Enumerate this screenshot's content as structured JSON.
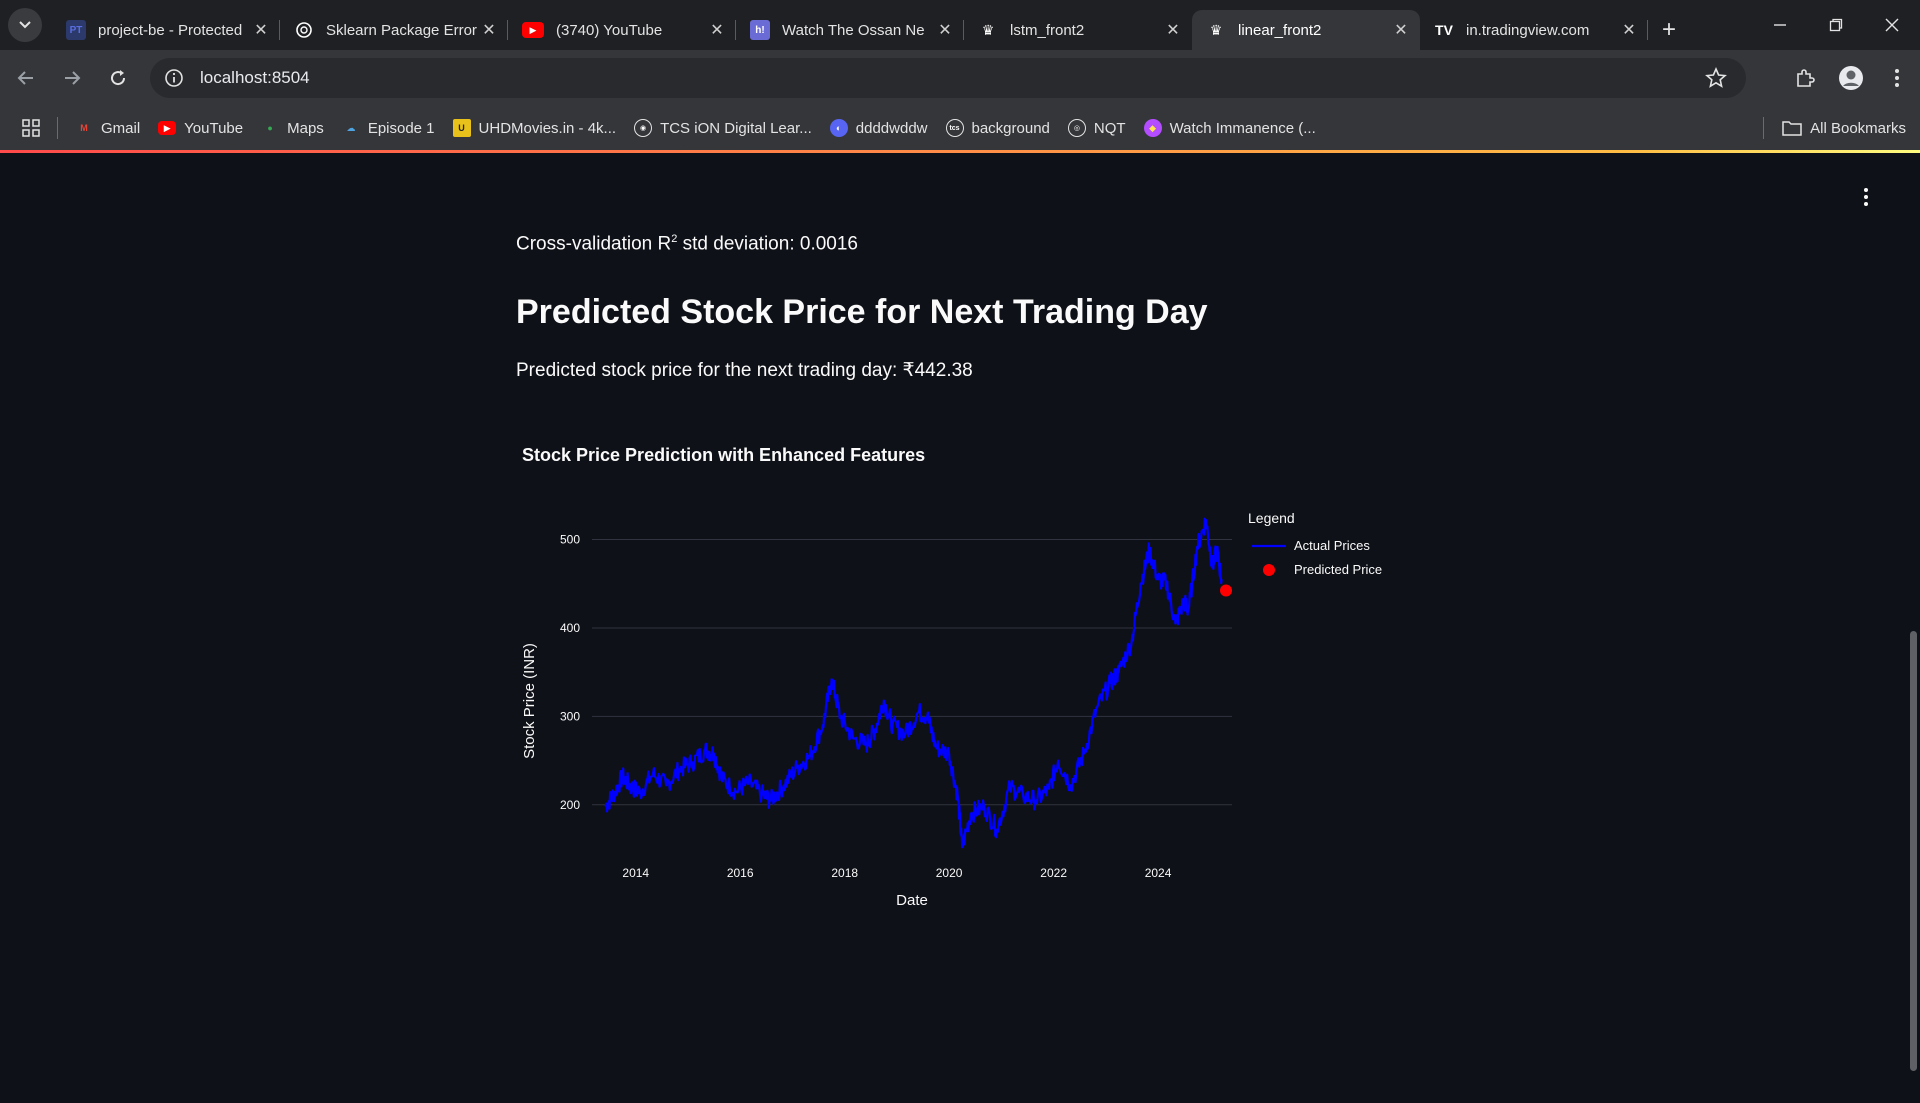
{
  "browser": {
    "tabs": [
      {
        "title": "project-be - Protected",
        "favicon": "PT",
        "icon": "pt-favicon-icon",
        "color": "#5b6ee1"
      },
      {
        "title": "Sklearn Package Error",
        "favicon": "",
        "icon": "openai-icon",
        "color": "#ffffff"
      },
      {
        "title": "(3740) YouTube",
        "favicon": "▶",
        "icon": "youtube-icon",
        "color": "#ff0000"
      },
      {
        "title": "Watch The Ossan Ne",
        "favicon": "h!",
        "icon": "hianime-icon",
        "color": "#6b6bd6"
      },
      {
        "title": "lstm_front2",
        "favicon": "♛",
        "icon": "streamlit-icon",
        "color": "#ffffff"
      },
      {
        "title": "linear_front2",
        "favicon": "♛",
        "icon": "streamlit-icon",
        "color": "#ffffff",
        "active": true
      },
      {
        "title": "in.tradingview.com",
        "favicon": "TV",
        "icon": "tradingview-icon",
        "color": "#ffffff"
      }
    ],
    "url": "localhost:8504",
    "bookmarks": [
      {
        "label": "Gmail",
        "icon": "gmail-icon",
        "glyph": "M",
        "color": "#ea4335"
      },
      {
        "label": "YouTube",
        "icon": "youtube-icon",
        "glyph": "▶",
        "color": "#ff0000"
      },
      {
        "label": "Maps",
        "icon": "maps-pin-icon",
        "glyph": "●",
        "color": "#34a853"
      },
      {
        "label": "Episode 1",
        "icon": "cloud-icon",
        "glyph": "☁",
        "color": "#4fa3e0"
      },
      {
        "label": "UHDMovies.in - 4k...",
        "icon": "uhd-icon",
        "glyph": "U",
        "color": "#e8c21b"
      },
      {
        "label": "TCS iON Digital Lear...",
        "icon": "tcs-ion-icon",
        "glyph": "◉",
        "color": "#ffffff"
      },
      {
        "label": "ddddwddw",
        "icon": "discord-icon",
        "glyph": "◐",
        "color": "#5865f2"
      },
      {
        "label": "background",
        "icon": "tcs-icon",
        "glyph": "tcs",
        "color": "#ffffff"
      },
      {
        "label": "NQT",
        "icon": "globe-icon",
        "glyph": "◎",
        "color": "#ffffff"
      },
      {
        "label": "Watch Immanence (...",
        "icon": "immanence-icon",
        "glyph": "◆",
        "color": "#b44cff"
      }
    ],
    "all_bookmarks": "All Bookmarks"
  },
  "app": {
    "cv_prefix": "Cross-validation R",
    "cv_sup": "2",
    "cv_suffix": " std deviation: 0.0016",
    "heading": "Predicted Stock Price for Next Trading Day",
    "prediction_text": "Predicted stock price for the next trading day: ₹442.38"
  },
  "chart_data": {
    "type": "line",
    "title": "Stock Price Prediction with Enhanced Features",
    "xlabel": "Date",
    "ylabel": "Stock Price (INR)",
    "x_ticks": [
      "2014",
      "2016",
      "2018",
      "2020",
      "2022",
      "2024"
    ],
    "y_ticks": [
      200,
      300,
      400,
      500
    ],
    "xlim": [
      "2013-03-01",
      "2025-06-01"
    ],
    "ylim": [
      150,
      530
    ],
    "grid": "horizontal",
    "legend_title": "Legend",
    "legend_position": "right",
    "series": [
      {
        "name": "Actual Prices",
        "color": "#0000ff",
        "points": [
          [
            "2013-06-01",
            198
          ],
          [
            "2013-08-01",
            212
          ],
          [
            "2013-10-01",
            232
          ],
          [
            "2013-12-01",
            220
          ],
          [
            "2014-02-01",
            214
          ],
          [
            "2014-05-01",
            235
          ],
          [
            "2014-08-01",
            222
          ],
          [
            "2014-11-01",
            240
          ],
          [
            "2015-02-01",
            248
          ],
          [
            "2015-05-01",
            262
          ],
          [
            "2015-07-01",
            258
          ],
          [
            "2015-09-01",
            228
          ],
          [
            "2015-12-01",
            215
          ],
          [
            "2016-03-01",
            225
          ],
          [
            "2016-06-01",
            212
          ],
          [
            "2016-08-01",
            205
          ],
          [
            "2016-11-01",
            222
          ],
          [
            "2017-02-01",
            242
          ],
          [
            "2017-05-01",
            255
          ],
          [
            "2017-08-01",
            290
          ],
          [
            "2017-10-01",
            342
          ],
          [
            "2017-12-01",
            300
          ],
          [
            "2018-03-01",
            275
          ],
          [
            "2018-06-01",
            268
          ],
          [
            "2018-08-01",
            285
          ],
          [
            "2018-10-01",
            318
          ],
          [
            "2018-12-01",
            290
          ],
          [
            "2019-03-01",
            280
          ],
          [
            "2019-06-01",
            305
          ],
          [
            "2019-08-01",
            300
          ],
          [
            "2019-10-01",
            265
          ],
          [
            "2020-01-01",
            258
          ],
          [
            "2020-03-01",
            210
          ],
          [
            "2020-04-01",
            152
          ],
          [
            "2020-06-01",
            190
          ],
          [
            "2020-09-01",
            198
          ],
          [
            "2020-12-01",
            172
          ],
          [
            "2021-03-01",
            220
          ],
          [
            "2021-06-01",
            210
          ],
          [
            "2021-09-01",
            205
          ],
          [
            "2021-12-01",
            218
          ],
          [
            "2022-02-01",
            250
          ],
          [
            "2022-05-01",
            222
          ],
          [
            "2022-08-01",
            258
          ],
          [
            "2022-11-01",
            310
          ],
          [
            "2023-02-01",
            338
          ],
          [
            "2023-04-01",
            350
          ],
          [
            "2023-07-01",
            385
          ],
          [
            "2023-09-01",
            450
          ],
          [
            "2023-11-01",
            488
          ],
          [
            "2024-01-01",
            455
          ],
          [
            "2024-03-01",
            450
          ],
          [
            "2024-05-01",
            405
          ],
          [
            "2024-07-01",
            430
          ],
          [
            "2024-08-01",
            420
          ],
          [
            "2024-10-01",
            492
          ],
          [
            "2024-12-01",
            522
          ],
          [
            "2025-01-15",
            470
          ],
          [
            "2025-02-15",
            488
          ],
          [
            "2025-03-20",
            455
          ]
        ]
      },
      {
        "name": "Predicted Price",
        "color": "#ff0000",
        "points": [
          [
            "2025-04-20",
            442.38
          ]
        ]
      }
    ]
  }
}
